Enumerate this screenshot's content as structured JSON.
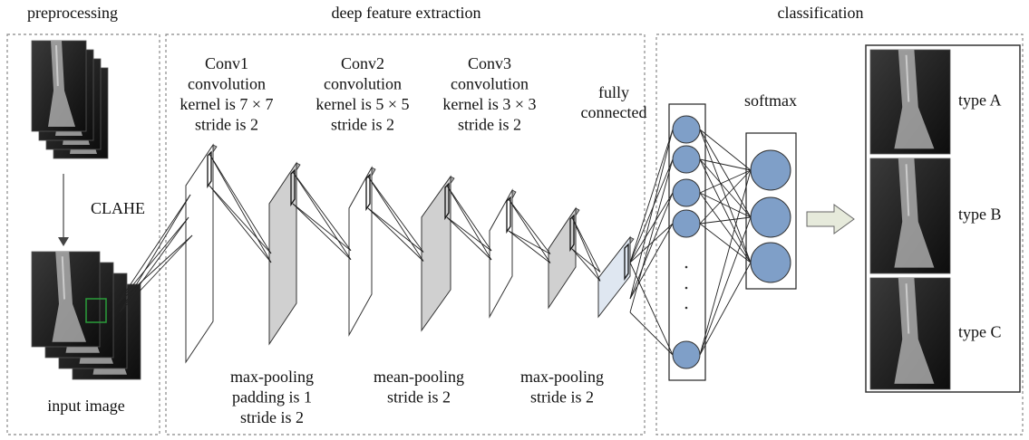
{
  "preprocessing": {
    "title": "preprocessing",
    "step": "CLAHE",
    "caption": "input image"
  },
  "feature_extraction": {
    "title": "deep feature extraction",
    "convolutions": [
      {
        "lines": [
          "Conv1",
          "convolution",
          "kernel is 7 × 7",
          "stride is 2"
        ]
      },
      {
        "lines": [
          "Conv2",
          "convolution",
          "kernel is 5 × 5",
          "stride is 2"
        ]
      },
      {
        "lines": [
          "Conv3",
          "convolution",
          "kernel is 3 × 3",
          "stride is 2"
        ]
      }
    ],
    "poolings": [
      {
        "lines": [
          "max-pooling",
          "padding is 1",
          "stride is 2"
        ]
      },
      {
        "lines": [
          "mean-pooling",
          "stride is 2"
        ]
      },
      {
        "lines": [
          "max-pooling",
          "stride is 2"
        ]
      }
    ],
    "fully_connected": {
      "lines": [
        "fully",
        "connected"
      ]
    }
  },
  "classification": {
    "title": "classification",
    "softmax": "softmax",
    "classes": [
      "type A",
      "type B",
      "type C"
    ]
  }
}
